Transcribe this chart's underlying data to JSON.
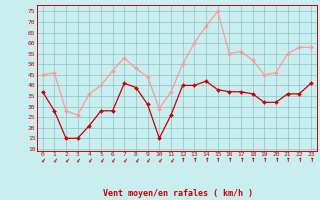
{
  "x": [
    0,
    1,
    2,
    3,
    4,
    5,
    6,
    7,
    8,
    9,
    10,
    11,
    12,
    13,
    14,
    15,
    16,
    17,
    18,
    19,
    20,
    21,
    22,
    23
  ],
  "wind_avg": [
    37,
    28,
    15,
    15,
    21,
    28,
    28,
    41,
    39,
    31,
    15,
    26,
    40,
    40,
    42,
    38,
    37,
    37,
    36,
    32,
    32,
    36,
    36,
    41
  ],
  "wind_gust": [
    45,
    46,
    28,
    26,
    36,
    40,
    47,
    53,
    48,
    44,
    29,
    37,
    50,
    60,
    68,
    75,
    55,
    56,
    52,
    45,
    46,
    55,
    58,
    58
  ],
  "bg_color": "#c8eef0",
  "grid_color": "#90c0c8",
  "line_avg_color": "#cc0000",
  "line_gust_color": "#ff9999",
  "tick_color": "#cc0000",
  "xlabel": "Vent moyen/en rafales ( km/h )",
  "ytick_labels": [
    "10",
    "15",
    "20",
    "25",
    "30",
    "35",
    "40",
    "45",
    "50",
    "55",
    "60",
    "65",
    "70",
    "75"
  ],
  "ytick_vals": [
    10,
    15,
    20,
    25,
    30,
    35,
    40,
    45,
    50,
    55,
    60,
    65,
    70,
    75
  ],
  "ylim": [
    9,
    78
  ],
  "xlim": [
    -0.5,
    23.5
  ],
  "xtick_vals": [
    0,
    1,
    2,
    3,
    4,
    5,
    6,
    7,
    8,
    9,
    10,
    11,
    12,
    13,
    14,
    15,
    16,
    17,
    18,
    19,
    20,
    21,
    22,
    23
  ],
  "arrow_down_indices": [
    0,
    1,
    2,
    3,
    4,
    5,
    6,
    7,
    8,
    9,
    10,
    11
  ],
  "arrow_up_indices": [
    12,
    13,
    14,
    15,
    16,
    17,
    18,
    19,
    20,
    21,
    22,
    23
  ],
  "arrow_down_char": "↓",
  "arrow_up_char": "↑",
  "spine_color": "#cc0000"
}
